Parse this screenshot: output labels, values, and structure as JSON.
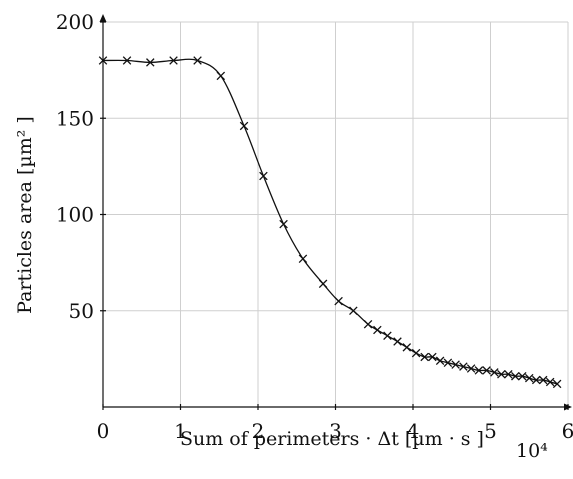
{
  "chart_data": {
    "type": "line",
    "xlabel": "Sum of perimeters · Δt [µm · s ]",
    "x_scale_label": "10⁴",
    "ylabel": "Particles area [µm² ]",
    "xlim": [
      0,
      6
    ],
    "ylim": [
      0,
      200
    ],
    "x_ticks": [
      0,
      1,
      2,
      3,
      4,
      5,
      6
    ],
    "x_tick_labels": [
      "0",
      "1",
      "2",
      "3",
      "4",
      "5",
      "6"
    ],
    "y_ticks": [
      50,
      100,
      150,
      200
    ],
    "y_tick_labels": [
      "50",
      "100",
      "150",
      "200"
    ],
    "grid": true,
    "series": [
      {
        "marker": "x",
        "color": "#111111",
        "x": [
          0,
          0.31,
          0.61,
          0.91,
          1.22,
          1.52,
          1.82,
          2.07,
          2.33,
          2.58,
          2.84,
          3.04,
          3.23,
          3.42,
          3.54,
          3.67,
          3.8,
          3.92,
          4.04,
          4.15,
          4.25,
          4.35,
          4.45,
          4.55,
          4.65,
          4.75,
          4.85,
          4.95,
          5.05,
          5.14,
          5.23,
          5.32,
          5.41,
          5.5,
          5.59,
          5.68,
          5.77,
          5.86
        ],
        "y": [
          180,
          180,
          179,
          180,
          180,
          172,
          146,
          120,
          95,
          77,
          64,
          55,
          50,
          43,
          40,
          37,
          34,
          31,
          28,
          26,
          26,
          24,
          23,
          22,
          21,
          20,
          19,
          19,
          18,
          17,
          17,
          16,
          16,
          15,
          14,
          14,
          13,
          12
        ]
      }
    ]
  }
}
